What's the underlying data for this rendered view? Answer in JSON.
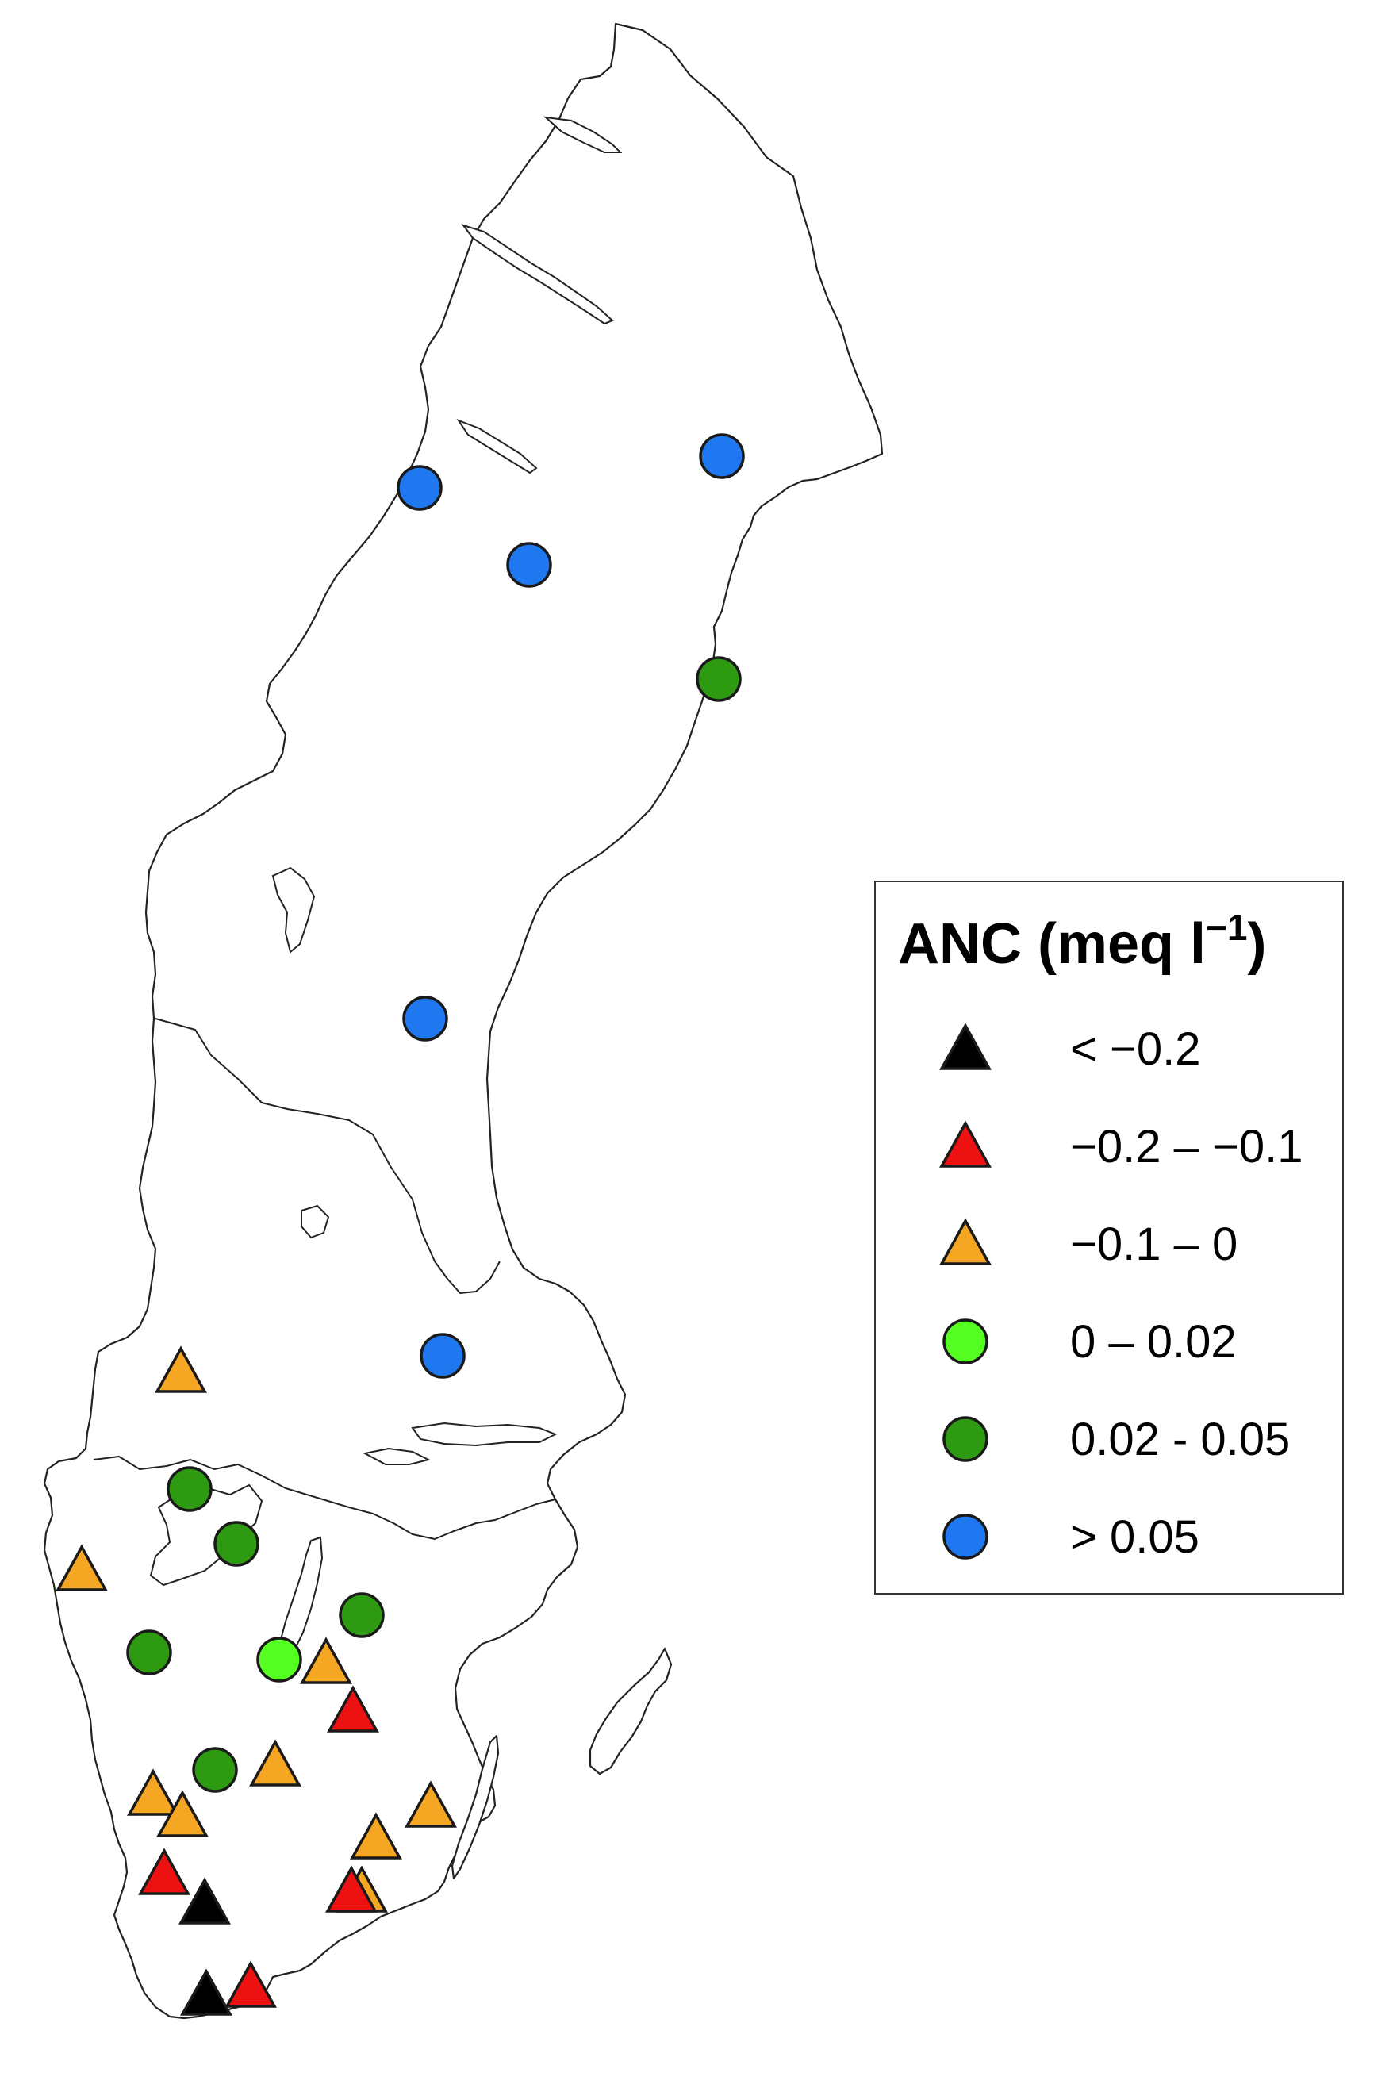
{
  "legend": {
    "title": "ANC (meq l",
    "title_sup": "−1",
    "title_close": ")",
    "items": [
      {
        "label": "< −0.2",
        "shape": "triangle",
        "color": "#000000"
      },
      {
        "label": "−0.2 – −0.1",
        "shape": "triangle",
        "color": "#ee1111"
      },
      {
        "label": "−0.1 – 0",
        "shape": "triangle",
        "color": "#f5a623"
      },
      {
        "label": "0 – 0.02",
        "shape": "circle",
        "color": "#55ff22"
      },
      {
        "label": "0.02 - 0.05",
        "shape": "circle",
        "color": "#2e9a12"
      },
      {
        "label": "> 0.05",
        "shape": "circle",
        "color": "#1f78f0"
      }
    ]
  },
  "map_data": {
    "region": "Sweden",
    "sites": [
      {
        "class": 5
      },
      {
        "class": 5
      },
      {
        "class": 5
      },
      {
        "class": 4
      },
      {
        "class": 5
      },
      {
        "class": 5
      },
      {
        "class": 2
      },
      {
        "class": 4
      },
      {
        "class": 4
      },
      {
        "class": 2
      },
      {
        "class": 4
      },
      {
        "class": 4
      },
      {
        "class": 3
      },
      {
        "class": 2
      },
      {
        "class": 1
      },
      {
        "class": 2
      },
      {
        "class": 4
      },
      {
        "class": 2
      },
      {
        "class": 2
      },
      {
        "class": 2
      },
      {
        "class": 2
      },
      {
        "class": 1
      },
      {
        "class": 2
      },
      {
        "class": 0
      },
      {
        "class": 0
      },
      {
        "class": 1
      },
      {
        "class": 1
      }
    ]
  }
}
